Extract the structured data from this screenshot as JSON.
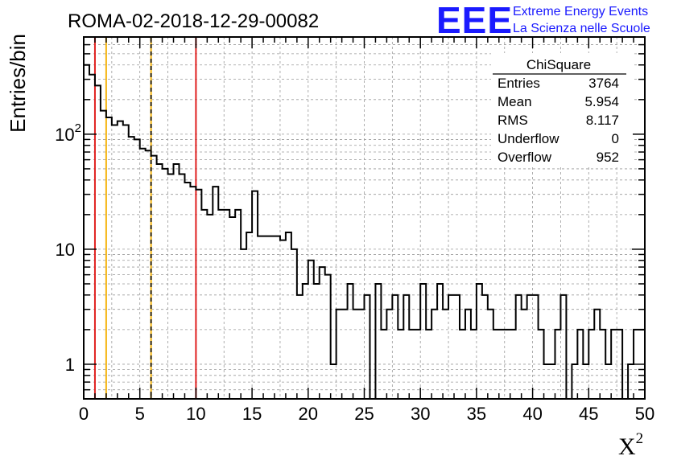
{
  "chart_data": {
    "type": "histogram",
    "title": "ROMA-02-2018-12-29-00082",
    "xlabel": "X",
    "xlabel_superscript": "2",
    "ylabel": "Entries/bin",
    "xlim": [
      0,
      50
    ],
    "ylim": [
      0.5,
      700
    ],
    "yscale": "log",
    "grid": true,
    "bin_width": 0.5,
    "x_tick_labels": [
      "0",
      "5",
      "10",
      "15",
      "20",
      "25",
      "30",
      "35",
      "40",
      "45",
      "50"
    ],
    "y_tick_labels": [
      {
        "value": 1,
        "base": "1",
        "exp": ""
      },
      {
        "value": 10,
        "base": "10",
        "exp": ""
      },
      {
        "value": 100,
        "base": "10",
        "exp": "2"
      }
    ],
    "values": [
      400,
      330,
      265,
      160,
      140,
      120,
      130,
      120,
      95,
      90,
      75,
      72,
      65,
      55,
      50,
      45,
      55,
      45,
      38,
      35,
      33,
      22,
      20,
      35,
      22,
      22,
      19,
      22,
      10,
      14,
      32,
      13,
      13,
      13,
      13,
      12,
      14,
      10,
      4,
      5,
      8,
      5,
      7,
      6,
      1,
      3,
      3,
      5,
      3,
      3,
      4,
      0.35,
      5,
      2,
      3,
      4,
      2,
      4,
      2,
      2,
      5,
      2,
      3,
      5,
      3,
      4,
      4,
      2,
      3,
      2,
      5,
      4,
      3,
      2,
      2,
      2,
      2,
      4,
      3,
      4,
      4,
      2,
      1,
      1,
      2,
      4,
      0.35,
      1,
      2,
      1,
      2,
      3,
      2,
      1,
      2,
      2,
      0.35,
      1,
      2,
      2,
      2
    ],
    "vertical_lines": [
      {
        "x": 1,
        "color": "#e0201f",
        "style": "solid"
      },
      {
        "x": 2,
        "color": "#f5b40f",
        "style": "solid"
      },
      {
        "x": 6,
        "color": "#f5b40f",
        "style": "solid"
      },
      {
        "x": 6,
        "color": "#000000",
        "style": "dashed"
      },
      {
        "x": 10,
        "color": "#e0201f",
        "style": "solid"
      }
    ],
    "stats": {
      "title": "ChiSquare",
      "rows": [
        {
          "label": "Entries",
          "value": "3764"
        },
        {
          "label": "Mean",
          "value": "5.954"
        },
        {
          "label": "RMS",
          "value": "8.117"
        },
        {
          "label": "Underflow",
          "value": "0"
        },
        {
          "label": "Overflow",
          "value": "952"
        }
      ]
    }
  },
  "logo": {
    "acronym": "EEE",
    "line1": "Extreme Energy Events",
    "line2": "La Scienza nelle Scuole",
    "color": "#1a1aff"
  }
}
